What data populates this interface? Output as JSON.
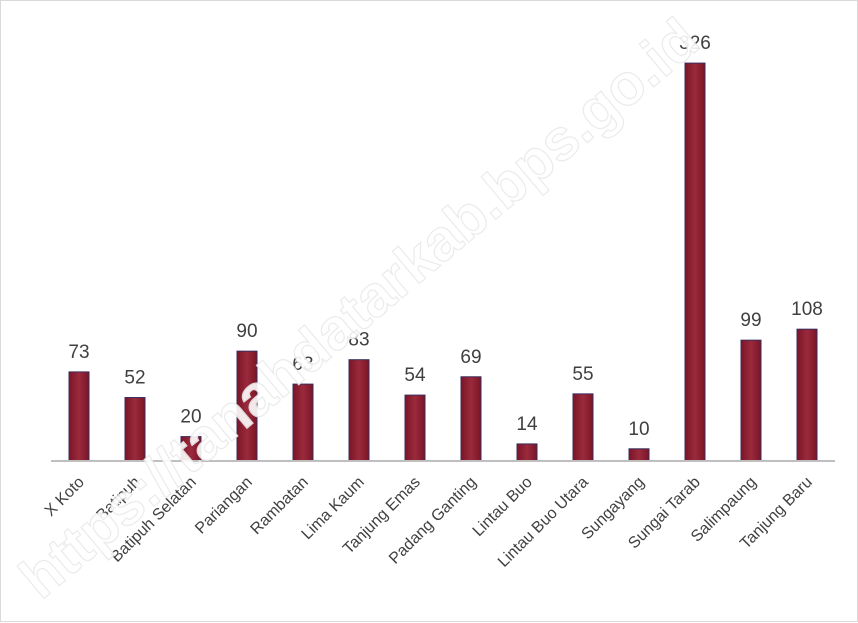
{
  "chart_data": {
    "type": "bar",
    "title": "",
    "xlabel": "",
    "ylabel": "",
    "categories": [
      "X Koto",
      "Batipuh",
      "Batipuh Selatan",
      "Pariangan",
      "Rambatan",
      "Lima Kaum",
      "Tanjung Emas",
      "Padang Ganting",
      "Lintau Buo",
      "Lintau Buo Utara",
      "Sungayang",
      "Sungai Tarab",
      "Salimpaung",
      "Tanjung Baru"
    ],
    "values": [
      73,
      52,
      20,
      90,
      63,
      83,
      54,
      69,
      14,
      55,
      10,
      326,
      99,
      108
    ],
    "ylim": [
      0,
      340
    ],
    "grid": false,
    "legend": "none",
    "bar_color": "#7b1527",
    "bar_color_light": "#9a2a3c",
    "bar_edge_color": "#3a2c5c",
    "axis_color": "#bfbfbf",
    "label_color": "#404040"
  },
  "watermark": "https://tanahdatarkab.bps.go.id"
}
